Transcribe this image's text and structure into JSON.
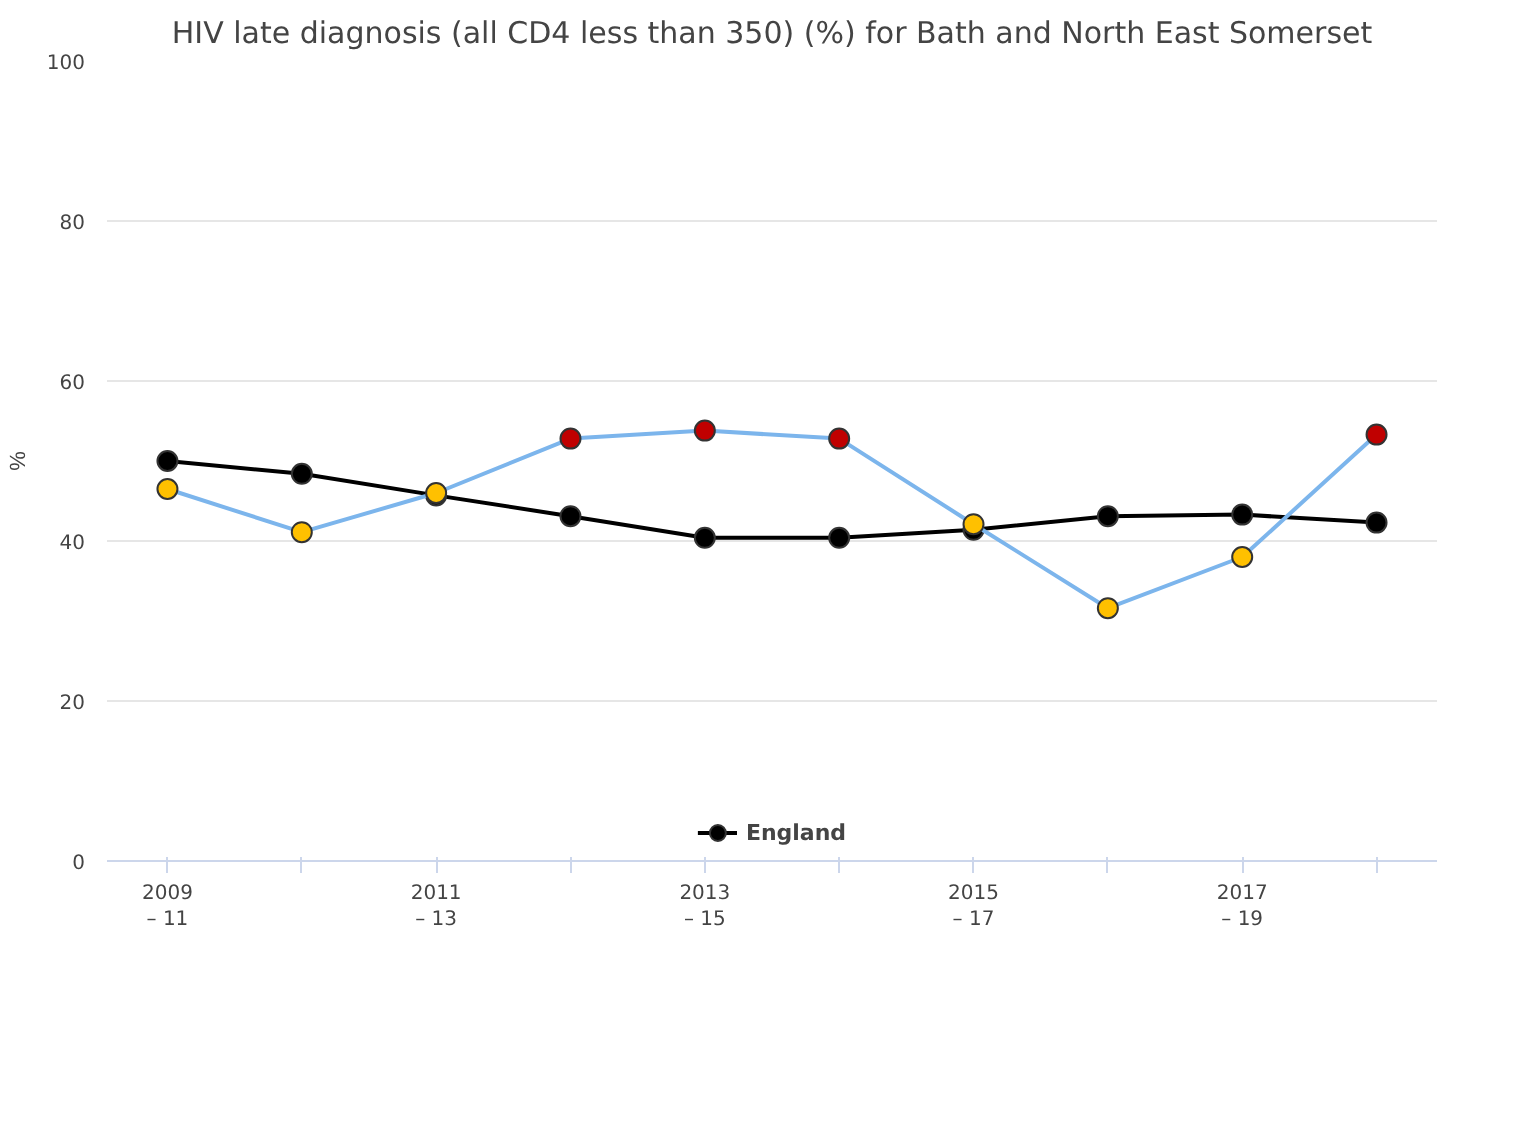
{
  "chart_data": {
    "type": "line",
    "title": "HIV late diagnosis (all CD4 less than 350) (%) for Bath and North East Somerset",
    "ylabel": "%",
    "categories": [
      "2009\n– 11",
      null,
      "2011\n– 13",
      null,
      "2013\n– 15",
      null,
      "2015\n– 17",
      null,
      "2017\n– 19",
      null
    ],
    "series": [
      {
        "color": "#7cb5ec",
        "colors": [
          "#ffc000",
          "#ffc000",
          "#ffc000",
          "#c00000",
          "#c00000",
          "#c00000",
          "#ffc000",
          "#ffc000",
          "#ffc000",
          "#c00000"
        ],
        "values": [
          46.5,
          41.1,
          46.0,
          52.8,
          53.8,
          52.8,
          42.1,
          31.6,
          38.0,
          53.3
        ]
      },
      {
        "name": "England",
        "color": "#000000",
        "values": [
          50.0,
          48.4,
          45.7,
          43.1,
          40.4,
          40.4,
          41.4,
          43.1,
          43.3,
          42.3
        ]
      }
    ],
    "ylim": [
      0,
      100
    ],
    "yticks": [
      0,
      20,
      40,
      60,
      80,
      100
    ],
    "grid": "y",
    "legend": "bottom",
    "marker": "circle"
  }
}
